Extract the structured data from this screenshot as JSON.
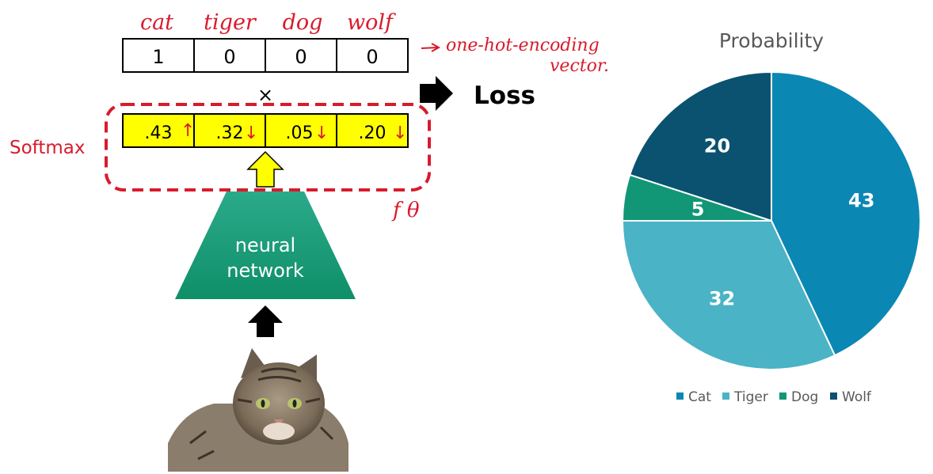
{
  "diagram": {
    "class_labels": [
      "cat",
      "tiger",
      "dog",
      "wolf"
    ],
    "onehot_values": [
      "1",
      "0",
      "0",
      "0"
    ],
    "onehot_note_line1": "one-hot-encoding",
    "onehot_note_line2": "vector.",
    "multiply_symbol": "×",
    "loss_label": "Loss",
    "softmax_label": "Softmax",
    "softmax_values": [
      ".43",
      ".32",
      ".05",
      ".20"
    ],
    "softmax_arrows": [
      "↑",
      "↓",
      "↓",
      "↓"
    ],
    "f_theta_label": "f θ",
    "network_line1": "neural",
    "network_line2": "network",
    "colors": {
      "red": "#d81b2c",
      "yellow": "#ffff00",
      "network_green": "#1f9e7a",
      "black": "#000000"
    }
  },
  "chart_data": {
    "type": "pie",
    "title": "Probability",
    "categories": [
      "Cat",
      "Tiger",
      "Dog",
      "Wolf"
    ],
    "values": [
      43,
      32,
      5,
      20
    ],
    "colors": [
      "#0b87b3",
      "#4ab3c6",
      "#119676",
      "#0a5270"
    ],
    "legend": "bottom",
    "data_labels": [
      "43",
      "32",
      "5",
      "20"
    ]
  }
}
